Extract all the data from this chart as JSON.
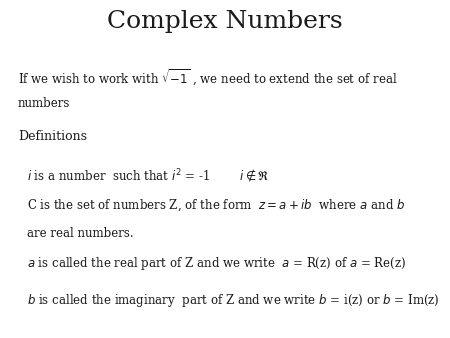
{
  "title": "Complex Numbers",
  "title_fontsize": 18,
  "body_fontsize": 8.5,
  "defs_fontsize": 9,
  "bg_color": "#ffffff",
  "text_color": "#1a1a1a",
  "fig_width": 4.5,
  "fig_height": 3.38,
  "dpi": 100,
  "line1a": "If we wish to work with $\\sqrt{-1}$ , we need to extend the set of real",
  "line1b": "numbers",
  "defs_header": "Definitions",
  "line3": "$i$ is a number  such that $i^2$ = -1        $i \\notin \\mathfrak{R}$",
  "line4a": "C is the set of numbers Z, of the form  $z=a+ib$  where $a$ and $b$",
  "line4b": "are real numbers.",
  "line5": "$a$ is called the real part of Z and we write  $a$ = R(z) of $a$ = Re(z)",
  "line6": "$b$ is called the imaginary  part of Z and we write $b$ = i(z) or $b$ = Im(z)"
}
